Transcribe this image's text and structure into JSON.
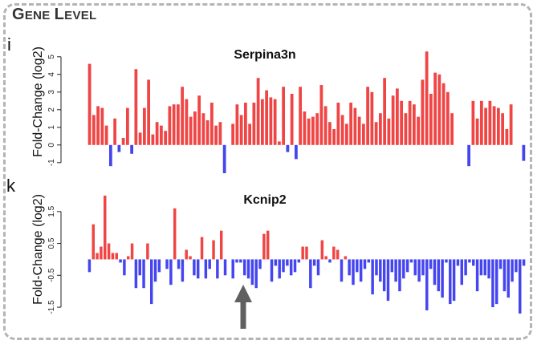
{
  "section_title": "GENE LEVEL",
  "colors": {
    "up": "#f04545",
    "down": "#4545f0",
    "arrow": "#606060",
    "frame": "#b4b4b4"
  },
  "chart_data": [
    {
      "type": "bar",
      "panel": "i",
      "title": "Serpina3n",
      "ylabel": "Fold-Change (log2)",
      "xlabel": "",
      "yticks": [
        -1,
        0,
        1,
        2,
        3,
        4,
        5
      ],
      "ytick_labels": [
        "-1",
        "0",
        "1",
        "2",
        "3",
        "4",
        "5"
      ],
      "ylim": [
        -1.6,
        5.4
      ],
      "values": [
        4.6,
        1.7,
        2.2,
        2.1,
        1.1,
        -1.2,
        1.5,
        -0.4,
        0.4,
        2.1,
        -0.5,
        4.3,
        0.7,
        2.1,
        3.7,
        0.6,
        1.3,
        1.1,
        0.8,
        2.2,
        2.3,
        2.3,
        3.3,
        2.6,
        1.6,
        1.9,
        2.8,
        1.8,
        1.4,
        2.4,
        1.1,
        1.3,
        -1.6,
        0,
        1.2,
        2.3,
        1.7,
        2.4,
        1.2,
        2.4,
        3.8,
        2.6,
        3.1,
        2.7,
        2.6,
        0.2,
        3.3,
        -0.4,
        2.9,
        -0.8,
        3.3,
        1.9,
        1.5,
        1.6,
        1.8,
        3.4,
        2.2,
        1.3,
        0.9,
        2.4,
        1.7,
        1.2,
        2.4,
        2.1,
        1.6,
        1.2,
        3.3,
        3.0,
        1.3,
        1.8,
        3.8,
        1.5,
        2.8,
        3.2,
        2.5,
        1.8,
        2.5,
        2.3,
        1.6,
        3.7,
        5.3,
        2.9,
        4.1,
        4.0,
        3.5,
        3.0,
        1.8,
        0,
        0,
        0,
        -1.2,
        2.5,
        1.5,
        2.5,
        2.1,
        2.5,
        2.2,
        2.1,
        1.8,
        0.9,
        2.3,
        0,
        0,
        -0.9
      ]
    },
    {
      "type": "bar",
      "panel": "k",
      "title": "Kcnip2",
      "ylabel": "Fold-Change (log2)",
      "xlabel": "",
      "yticks": [
        -1.5,
        -0.5,
        0.5,
        1.5
      ],
      "ytick_labels": [
        "-1.5",
        "-0.5",
        "0.5",
        "1.5"
      ],
      "ylim": [
        -1.8,
        2.3
      ],
      "values": [
        -0.4,
        1.1,
        0.2,
        0.4,
        2.0,
        0.5,
        0.2,
        0.2,
        -0.1,
        -0.5,
        0.1,
        0.5,
        -0.9,
        -0.5,
        -0.9,
        0.5,
        -1.4,
        -0.7,
        -0.4,
        0,
        -0.3,
        -0.8,
        1.6,
        -0.3,
        -0.7,
        0.3,
        0.1,
        -0.5,
        -0.6,
        0.7,
        -0.6,
        -0.3,
        0.6,
        -0.6,
        0.9,
        -0.5,
        0,
        -0.6,
        -0.1,
        -0.1,
        -0.5,
        -0.6,
        -0.8,
        -0.9,
        -0.3,
        0.8,
        0.9,
        -0.7,
        -0.2,
        -0.6,
        -0.4,
        -0.2,
        -0.5,
        -0.4,
        -0.1,
        0.4,
        0.4,
        -0.9,
        -0.2,
        -0.5,
        0.6,
        0.1,
        -0.1,
        0.4,
        0.3,
        -0.7,
        0.1,
        -0.5,
        -0.8,
        -0.4,
        -0.7,
        -0.3,
        -0.1,
        -1.1,
        -0.5,
        -0.7,
        -1.0,
        -1.3,
        -0.4,
        -0.7,
        -1.0,
        -0.6,
        -0.4,
        -0.1,
        -0.5,
        -0.7,
        -0.5,
        -1.6,
        -0.3,
        -0.8,
        -1.0,
        -1.2,
        -0.1,
        -1.4,
        -1.3,
        -0.2,
        -0.8,
        -0.5,
        -0.1,
        -0.2,
        -1.0,
        -0.5,
        -0.5,
        -0.6,
        -1.5,
        -1.4,
        -0.3,
        -1.0,
        -1.2,
        -0.7,
        -0.4,
        -1.7,
        -0.2
      ]
    }
  ]
}
